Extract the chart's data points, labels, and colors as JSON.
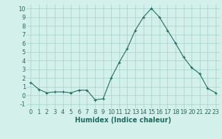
{
  "x": [
    0,
    1,
    2,
    3,
    4,
    5,
    6,
    7,
    8,
    9,
    10,
    11,
    12,
    13,
    14,
    15,
    16,
    17,
    18,
    19,
    20,
    21,
    22,
    23
  ],
  "y": [
    1.5,
    0.7,
    0.3,
    0.4,
    0.4,
    0.3,
    0.6,
    0.6,
    -0.5,
    -0.4,
    2.0,
    3.8,
    5.4,
    7.5,
    9.0,
    10.0,
    9.0,
    7.5,
    6.0,
    4.4,
    3.2,
    2.5,
    0.8,
    0.3
  ],
  "line_color": "#1a6b5e",
  "marker": "+",
  "marker_size": 3,
  "bg_color": "#d4f0eb",
  "grid_color": "#a0cfc7",
  "xlabel": "Humidex (Indice chaleur)",
  "xlabel_fontsize": 7,
  "tick_fontsize": 6,
  "ylim": [
    -1.5,
    10.5
  ],
  "xlim": [
    -0.5,
    23.5
  ],
  "yticks": [
    -1,
    0,
    1,
    2,
    3,
    4,
    5,
    6,
    7,
    8,
    9,
    10
  ],
  "xticks": [
    0,
    1,
    2,
    3,
    4,
    5,
    6,
    7,
    8,
    9,
    10,
    11,
    12,
    13,
    14,
    15,
    16,
    17,
    18,
    19,
    20,
    21,
    22,
    23
  ]
}
